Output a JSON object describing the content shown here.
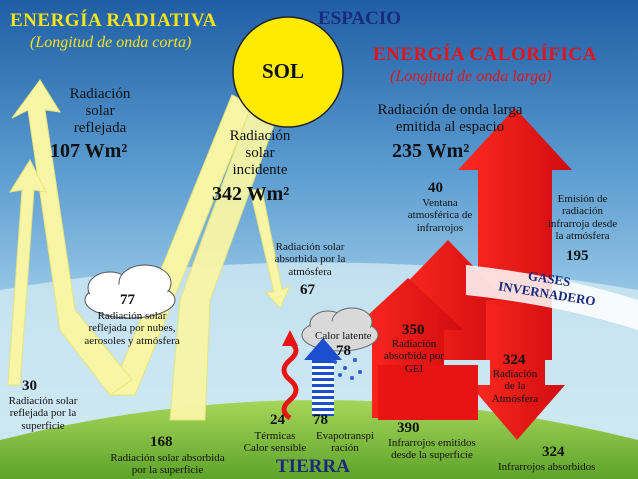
{
  "headers": {
    "radiant": "ENERGÍA RADIATIVA",
    "radiant_sub": "(Longitud de onda corta)",
    "space": "ESPACIO",
    "caloric": "ENERGÍA CALORÍFICA",
    "caloric_sub": "(Longitud de onda larga)",
    "earth": "TIERRA",
    "sun": "SOL"
  },
  "flows": {
    "reflected": {
      "line1": "Radiación",
      "line2": "solar",
      "line3": "reflejada",
      "value": "107 Wm²"
    },
    "incident": {
      "line1": "Radiación",
      "line2": "solar",
      "line3": "incidente",
      "value": "342 Wm²"
    },
    "emitted_space": {
      "line1": "Radiación  de onda larga",
      "line2": "emitida al espacio",
      "value": "235 Wm²"
    },
    "window": {
      "value": "40",
      "line1": "Ventana",
      "line2": "atmosférica de",
      "line3": "infrarrojos"
    },
    "atm_emission": {
      "line1": "Emisión de",
      "line2": "radiación",
      "line3": "infrarroja  desde",
      "line4": "la atmósfera",
      "value": "195"
    },
    "absorbed_atm": {
      "line1": "Radiación solar",
      "line2": "absorbida por la",
      "line3": "atmósfera",
      "value": "67"
    },
    "clouds_reflected": {
      "value": "77",
      "line1": "Radiación solar",
      "line2": "reflejada por nubes,",
      "line3": "aerosoles y  atmósfera"
    },
    "surface_reflected": {
      "value": "30",
      "line1": "Radiación solar",
      "line2": "reflejada por la",
      "line3": "superficie"
    },
    "surface_absorbed": {
      "value": "168",
      "line1": "Radiación solar absorbida",
      "line2": "por la superficie"
    },
    "latent_heat": {
      "label": "Calor latente",
      "value": "78"
    },
    "thermal": {
      "value": "24",
      "line1": "Térmicas",
      "line2": "Calor sensible"
    },
    "evapotranspiration": {
      "value": "78",
      "line1": "Evapotranspi",
      "line2": "ración"
    },
    "absorbed_ghg": {
      "value": "350",
      "line1": "Radiación",
      "line2": "absorbida por",
      "line3": "GEI"
    },
    "atm_radiation": {
      "value": "324",
      "line1": "Radiación",
      "line2": "de la",
      "line3": "Atmósfera"
    },
    "surface_ir": {
      "value": "390",
      "line1": "Infrarrojos emitidos",
      "line2": "desde la superficie"
    },
    "ir_absorbed": {
      "value": "324",
      "line1": "Infrarrojos absorbidos"
    },
    "greenhouse": {
      "line1": "GASES",
      "line2": "INVERNADERO"
    }
  },
  "colors": {
    "sky_top": "#1f62a8",
    "sky_bottom": "#bfe0ee",
    "solar_arrow": "#f8f6a6",
    "heat_arrow": "#e81414",
    "ground": "#8cc63f",
    "sun": "#ffea00",
    "latent_arrow": "#1b4fd0"
  },
  "icons": [
    "sun-icon",
    "cloud-icon",
    "rain-cloud-icon",
    "wavy-arrow-icon",
    "striped-arrow-icon"
  ]
}
